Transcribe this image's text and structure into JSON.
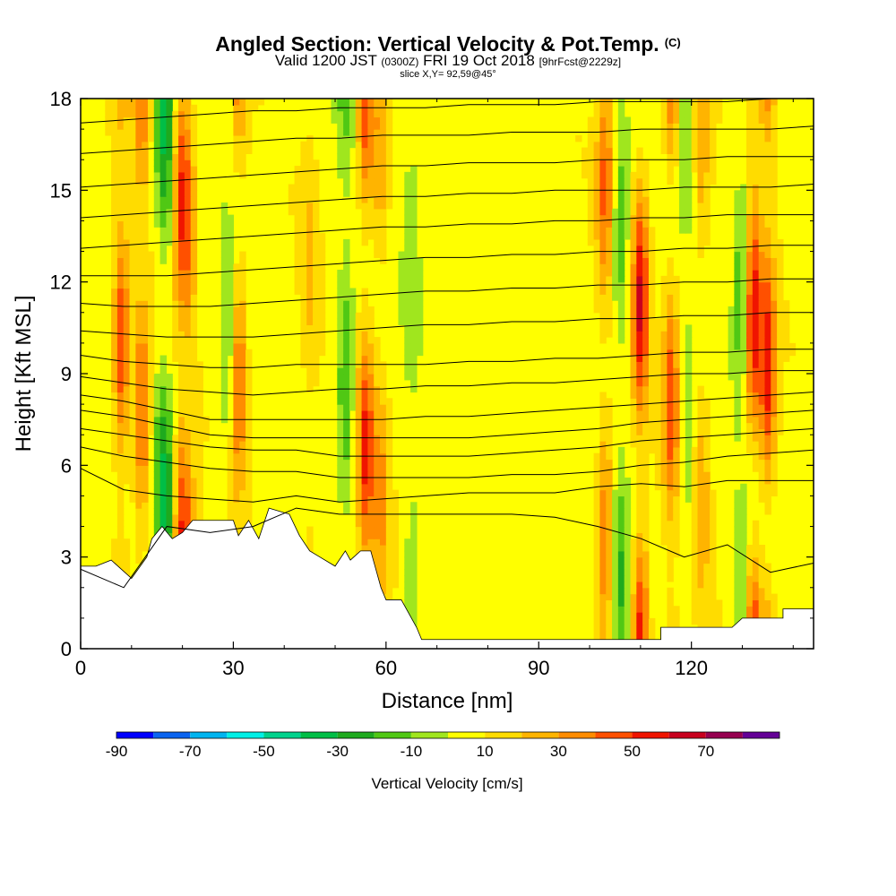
{
  "header": {
    "title": "Angled Section: Vertical Velocity & Pot.Temp.",
    "title_suffix": "(C)",
    "valid_prefix": "Valid 1200 JST",
    "valid_utc": "(0300Z)",
    "valid_date": "FRI 19 Oct 2018",
    "forecast": "[9hrFcst@2229z]",
    "slice": "slice X,Y= 92,59@45°"
  },
  "chart_data": {
    "type": "heatmap",
    "title": "Angled Section: Vertical Velocity & Pot.Temp.",
    "xlabel": "Distance [nm]",
    "ylabel": "Height [Kft MSL]",
    "xlim": [
      0,
      144
    ],
    "ylim": [
      0,
      18
    ],
    "x_ticks": [
      0,
      30,
      60,
      90,
      120
    ],
    "y_ticks": [
      0,
      3,
      6,
      9,
      12,
      15,
      18
    ],
    "colorbar": {
      "title": "Vertical Velocity [cm/s]",
      "levels": [
        -90,
        -80,
        -70,
        -60,
        -50,
        -40,
        -30,
        -20,
        -10,
        0,
        10,
        20,
        30,
        40,
        50,
        60,
        70,
        80
      ],
      "tick_labels": [
        -90,
        -70,
        -50,
        -30,
        -10,
        10,
        30,
        50,
        70
      ],
      "colors": [
        "#0000ff",
        "#0a64f0",
        "#00b4f0",
        "#00f0e6",
        "#00d28c",
        "#00be46",
        "#1eaa1e",
        "#50c814",
        "#a0e61e",
        "#ffff00",
        "#ffdc00",
        "#ffb400",
        "#ff8c00",
        "#ff5000",
        "#f01400",
        "#c8001e",
        "#960050",
        "#640096"
      ]
    },
    "updraft_columns": [
      {
        "x": 8,
        "peak": 45
      },
      {
        "x": 12,
        "peak": 40
      },
      {
        "x": 19,
        "peak": 50
      },
      {
        "x": 21,
        "peak": 35
      },
      {
        "x": 31,
        "peak": 40
      },
      {
        "x": 45,
        "peak": 15
      },
      {
        "x": 56,
        "peak": 45
      },
      {
        "x": 59,
        "peak": 25
      },
      {
        "x": 103,
        "peak": 35
      },
      {
        "x": 110,
        "peak": 55
      },
      {
        "x": 116,
        "peak": 40
      },
      {
        "x": 122,
        "peak": 20
      },
      {
        "x": 132,
        "peak": 55
      },
      {
        "x": 135,
        "peak": 50
      }
    ],
    "downdraft_columns": [
      {
        "x": 16,
        "peak": -30
      },
      {
        "x": 18,
        "peak": -35
      },
      {
        "x": 29,
        "peak": -20
      },
      {
        "x": 52,
        "peak": -30
      },
      {
        "x": 65,
        "peak": -15
      },
      {
        "x": 106,
        "peak": -25
      },
      {
        "x": 119,
        "peak": -15
      },
      {
        "x": 130,
        "peak": -30
      }
    ],
    "terrain_kft": [
      [
        0,
        2.7
      ],
      [
        3,
        2.7
      ],
      [
        6,
        2.9
      ],
      [
        8,
        2.6
      ],
      [
        10,
        2.3
      ],
      [
        13,
        3.0
      ],
      [
        14,
        3.6
      ],
      [
        16,
        4.0
      ],
      [
        18,
        3.6
      ],
      [
        20,
        3.8
      ],
      [
        22,
        4.2
      ],
      [
        30,
        4.2
      ],
      [
        31,
        3.7
      ],
      [
        33,
        4.2
      ],
      [
        35,
        3.6
      ],
      [
        37,
        4.6
      ],
      [
        41,
        4.4
      ],
      [
        43,
        3.7
      ],
      [
        45,
        3.2
      ],
      [
        47,
        3.0
      ],
      [
        50,
        2.7
      ],
      [
        52,
        3.2
      ],
      [
        53,
        2.9
      ],
      [
        55,
        3.2
      ],
      [
        57,
        3.2
      ],
      [
        58,
        2.6
      ],
      [
        59,
        2.0
      ],
      [
        60,
        1.6
      ],
      [
        63,
        1.6
      ],
      [
        65,
        1.0
      ],
      [
        66,
        0.7
      ],
      [
        67,
        0.3
      ],
      [
        114,
        0.3
      ],
      [
        114,
        0.7
      ],
      [
        128,
        0.7
      ],
      [
        130,
        1.0
      ],
      [
        138,
        1.0
      ],
      [
        138,
        1.3
      ],
      [
        144,
        1.3
      ]
    ],
    "isentropes_kft": [
      [
        2.6,
        2.0,
        4.0,
        3.8,
        4.0,
        4.6,
        4.4,
        4.4,
        4.4,
        4.4,
        4.4,
        4.3,
        4.0,
        3.6,
        3.0,
        3.4,
        2.5,
        2.8
      ],
      [
        5.9,
        5.2,
        5.0,
        4.9,
        4.8,
        5.0,
        4.8,
        4.9,
        5.0,
        5.1,
        5.1,
        5.1,
        5.3,
        5.4,
        5.3,
        5.5,
        5.5,
        5.5
      ],
      [
        6.6,
        6.3,
        6.1,
        5.9,
        5.8,
        5.8,
        5.6,
        5.6,
        5.6,
        5.6,
        5.7,
        5.7,
        5.8,
        6.0,
        6.1,
        6.3,
        6.4,
        6.5
      ],
      [
        7.2,
        7.0,
        6.8,
        6.6,
        6.5,
        6.5,
        6.3,
        6.3,
        6.3,
        6.3,
        6.4,
        6.5,
        6.6,
        6.8,
        6.9,
        7.0,
        7.1,
        7.2
      ],
      [
        7.8,
        7.6,
        7.3,
        7.0,
        6.9,
        6.9,
        6.9,
        6.9,
        6.9,
        6.9,
        7.0,
        7.1,
        7.2,
        7.4,
        7.5,
        7.6,
        7.7,
        7.8
      ],
      [
        8.3,
        8.1,
        7.8,
        7.5,
        7.5,
        7.5,
        7.5,
        7.5,
        7.6,
        7.6,
        7.7,
        7.8,
        7.9,
        8.0,
        8.1,
        8.2,
        8.3,
        8.4
      ],
      [
        8.9,
        8.7,
        8.5,
        8.4,
        8.3,
        8.4,
        8.5,
        8.5,
        8.6,
        8.6,
        8.7,
        8.7,
        8.8,
        8.9,
        9.0,
        9.0,
        9.1,
        9.1
      ],
      [
        9.6,
        9.4,
        9.3,
        9.2,
        9.2,
        9.3,
        9.3,
        9.3,
        9.3,
        9.4,
        9.4,
        9.5,
        9.5,
        9.6,
        9.7,
        9.7,
        9.8,
        9.8
      ],
      [
        10.4,
        10.3,
        10.2,
        10.2,
        10.2,
        10.3,
        10.4,
        10.5,
        10.6,
        10.6,
        10.7,
        10.7,
        10.8,
        10.8,
        10.9,
        10.9,
        11.0,
        11.0
      ],
      [
        11.3,
        11.2,
        11.2,
        11.2,
        11.3,
        11.4,
        11.5,
        11.6,
        11.7,
        11.7,
        11.8,
        11.8,
        11.9,
        11.9,
        12.0,
        12.0,
        12.1,
        12.1
      ],
      [
        12.2,
        12.2,
        12.2,
        12.3,
        12.4,
        12.5,
        12.6,
        12.7,
        12.8,
        12.8,
        12.9,
        12.9,
        13.0,
        13.0,
        13.1,
        13.1,
        13.2,
        13.2
      ],
      [
        13.1,
        13.2,
        13.3,
        13.4,
        13.5,
        13.6,
        13.7,
        13.8,
        13.8,
        13.9,
        13.9,
        14.0,
        14.0,
        14.1,
        14.1,
        14.2,
        14.2,
        14.2
      ],
      [
        14.1,
        14.2,
        14.3,
        14.4,
        14.5,
        14.6,
        14.7,
        14.8,
        14.8,
        14.9,
        14.9,
        15.0,
        15.0,
        15.0,
        15.1,
        15.1,
        15.1,
        15.2
      ],
      [
        15.1,
        15.2,
        15.3,
        15.4,
        15.5,
        15.6,
        15.7,
        15.8,
        15.8,
        15.9,
        15.9,
        15.9,
        16.0,
        16.0,
        16.0,
        16.1,
        16.1,
        16.1
      ],
      [
        16.2,
        16.3,
        16.4,
        16.5,
        16.6,
        16.7,
        16.7,
        16.8,
        16.8,
        16.8,
        16.9,
        16.9,
        16.9,
        17.0,
        17.0,
        17.0,
        17.0,
        17.1
      ],
      [
        17.2,
        17.3,
        17.4,
        17.5,
        17.6,
        17.6,
        17.7,
        17.7,
        17.7,
        17.8,
        17.8,
        17.8,
        17.9,
        17.9,
        17.9,
        17.9,
        18.0,
        18.0
      ]
    ]
  }
}
